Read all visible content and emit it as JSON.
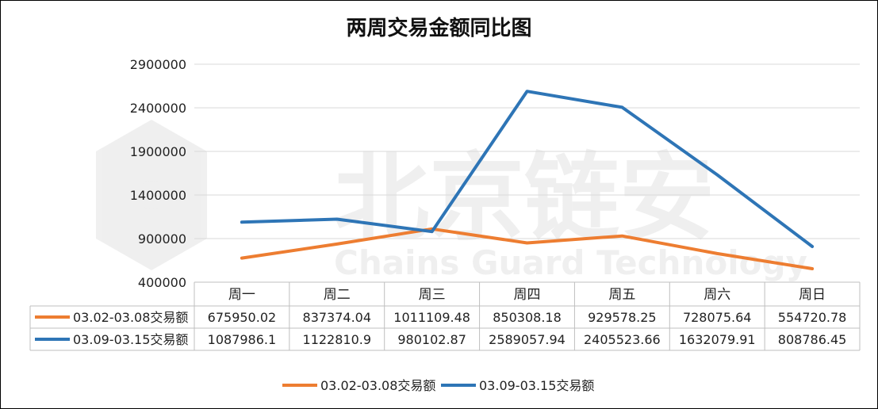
{
  "chart_data": {
    "type": "line",
    "title": "两周交易金额同比图",
    "categories": [
      "周一",
      "周二",
      "周三",
      "周四",
      "周五",
      "周六",
      "周日"
    ],
    "series": [
      {
        "name": "03.02-03.08交易额",
        "color": "#ED7D31",
        "values": [
          675950.02,
          837374.04,
          1011109.48,
          850308.18,
          929578.25,
          728075.64,
          554720.78
        ],
        "labels": [
          "675950.02",
          "837374.04",
          "1011109.48",
          "850308.18",
          "929578.25",
          "728075.64",
          "554720.78"
        ]
      },
      {
        "name": "03.09-03.15交易额",
        "color": "#2E75B6",
        "values": [
          1087986.1,
          1122810.9,
          980102.87,
          2589057.94,
          2405523.66,
          1632079.91,
          808786.45
        ],
        "labels": [
          "1087986.1",
          "1122810.9",
          "980102.87",
          "2589057.94",
          "2405523.66",
          "1632079.91",
          "808786.45"
        ]
      }
    ],
    "ylim": [
      400000,
      2900000
    ],
    "yticks": [
      400000,
      900000,
      1400000,
      1900000,
      2400000,
      2900000
    ],
    "ytick_labels": [
      "400000",
      "900000",
      "1400000",
      "1900000",
      "2400000",
      "2900000"
    ],
    "grid": true,
    "legend_position": "bottom",
    "data_table": true
  },
  "watermark": {
    "main": "北京链安",
    "sub": "Chains Guard Technology"
  }
}
